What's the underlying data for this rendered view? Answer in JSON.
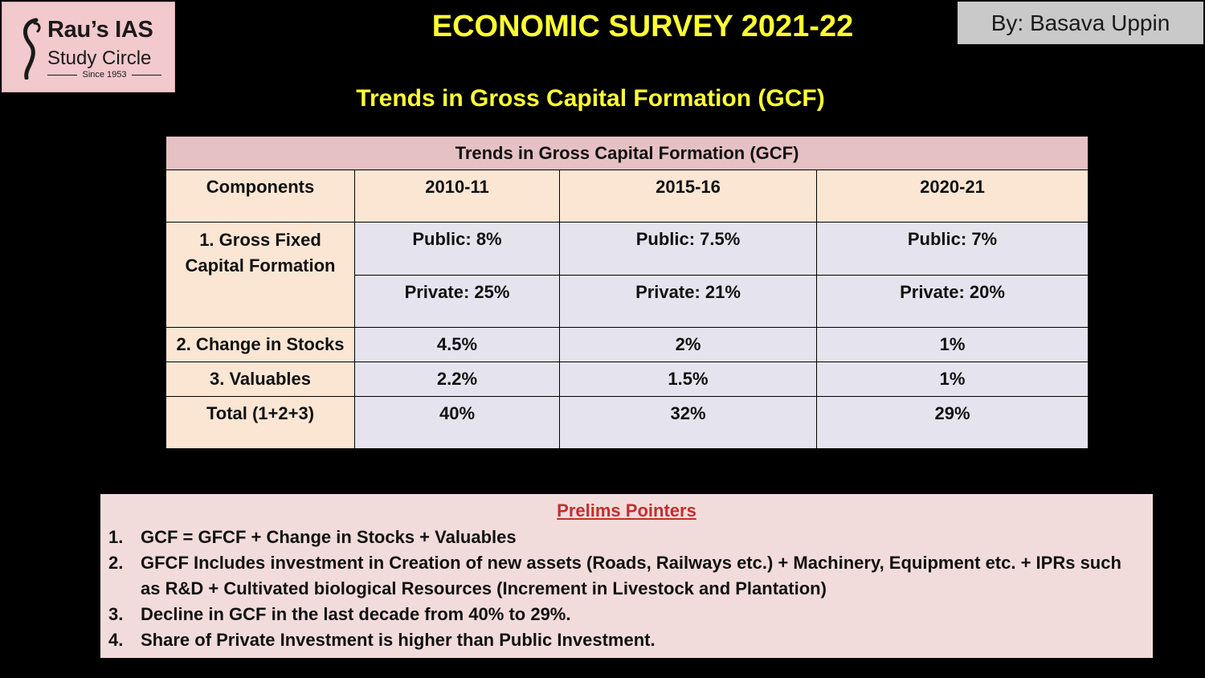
{
  "logo": {
    "name": "Rau’s IAS",
    "sub": "Study Circle",
    "since": "Since 1953",
    "icon": "rau-logo-icon"
  },
  "title": "ECONOMIC SURVEY 2021-22",
  "author": "By: Basava Uppin",
  "subtitle": "Trends in Gross Capital Formation (GCF)",
  "table": {
    "caption": "Trends in Gross Capital Formation (GCF)",
    "headers": [
      "Components",
      "2010-11",
      "2015-16",
      "2020-21"
    ],
    "gfcf": {
      "label_line1": "1. Gross Fixed",
      "label_line2": "Capital Formation",
      "public": [
        "Public: 8%",
        "Public: 7.5%",
        "Public: 7%"
      ],
      "private": [
        "Private: 25%",
        "Private: 21%",
        "Private: 20%"
      ]
    },
    "rows": [
      {
        "label": "2. Change in Stocks",
        "values": [
          "4.5%",
          "2%",
          "1%"
        ]
      },
      {
        "label": "3. Valuables",
        "values": [
          "2.2%",
          "1.5%",
          "1%"
        ]
      },
      {
        "label": "Total (1+2+3)",
        "values": [
          "40%",
          "32%",
          "29%"
        ]
      }
    ]
  },
  "pointers": {
    "title": "Prelims Pointers",
    "items": [
      {
        "num": "1.",
        "text": "GCF = GFCF + Change in Stocks + Valuables"
      },
      {
        "num": "2.",
        "text": "GFCF Includes investment in Creation of new assets (Roads, Railways etc.) + Machinery, Equipment etc. + IPRs such as R&D + Cultivated biological Resources (Increment in Livestock and Plantation)"
      },
      {
        "num": "3.",
        "text": "Decline in GCF in the last decade from 40% to 29%."
      },
      {
        "num": "4.",
        "text": "Share of Private Investment is higher than Public Investment."
      }
    ]
  }
}
